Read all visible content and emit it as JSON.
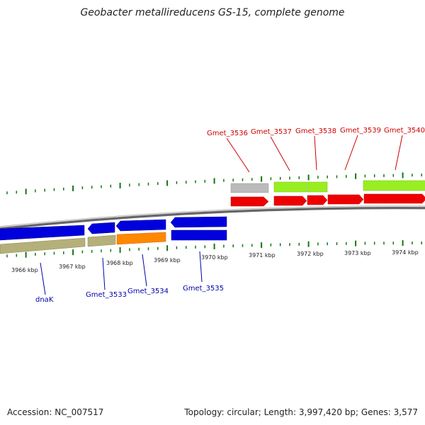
{
  "title": "Geobacter metallireducens GS-15, complete genome",
  "footer": {
    "accession": "Accession: NC_007517",
    "summary": "Topology: circular; Length: 3,997,420 bp; Genes: 3,577"
  },
  "colors": {
    "forward_label": "#cc0000",
    "reverse_label": "#0000aa",
    "cds_forward": "#ee0000",
    "cds_reverse": "#0000dd",
    "gene_green": "#99ee22",
    "gene_gray": "#bbbbbb",
    "gene_olive": "#b5b07a",
    "gene_orange": "#ff8800",
    "tick": "#117711",
    "backbone": "#888888"
  },
  "scale": {
    "labels": [
      "3966 kbp",
      "3967 kbp",
      "3968 kbp",
      "3969 kbp",
      "3970 kbp",
      "3971 kbp",
      "3972 kbp",
      "3973 kbp",
      "3974 kbp"
    ]
  },
  "forward_genes": [
    {
      "name": "Gmet_3536"
    },
    {
      "name": "Gmet_3537"
    },
    {
      "name": "Gmet_3538"
    },
    {
      "name": "Gmet_3539"
    },
    {
      "name": "Gmet_3540"
    }
  ],
  "reverse_genes": [
    {
      "name": "dnaK"
    },
    {
      "name": "Gmet_3533"
    },
    {
      "name": "Gmet_3534"
    },
    {
      "name": "Gmet_3535"
    }
  ]
}
